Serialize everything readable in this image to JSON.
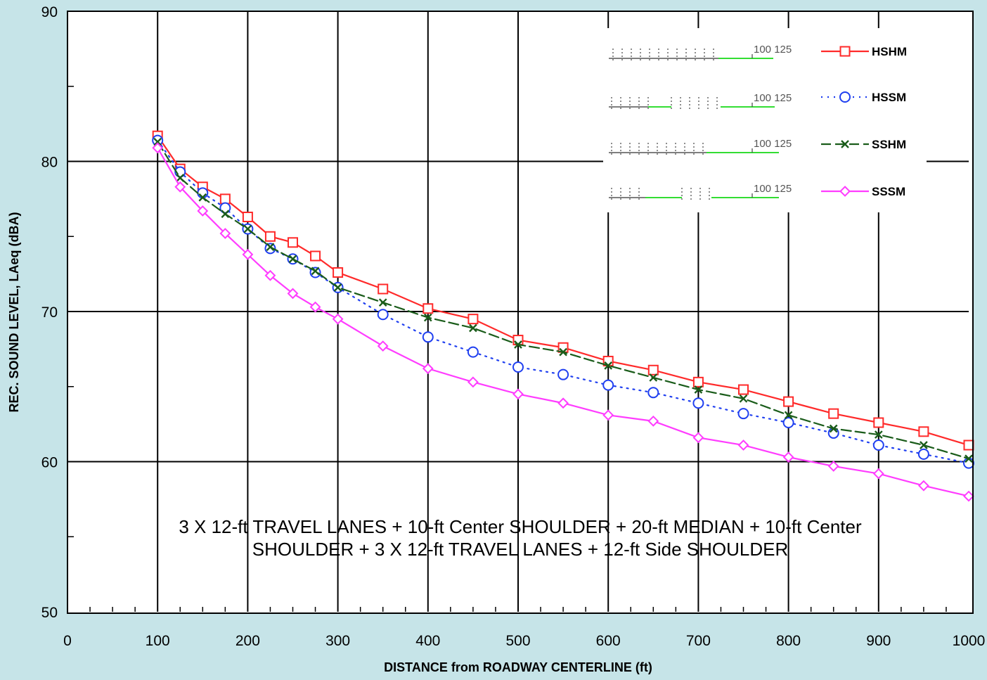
{
  "chart_data": {
    "type": "line",
    "title": "",
    "xlabel": "DISTANCE from ROADWAY CENTERLINE (ft)",
    "ylabel": "REC. SOUND LEVEL, LAeq (dBA)",
    "xlim": [
      0,
      1000
    ],
    "ylim": [
      50,
      90
    ],
    "x_ticks": [
      "0",
      "100",
      "200",
      "300",
      "400",
      "500",
      "600",
      "700",
      "800",
      "900",
      "1000"
    ],
    "y_ticks": [
      "50",
      "60",
      "70",
      "80",
      "90"
    ],
    "grid": true,
    "legend_position": "top-right",
    "x": [
      100,
      125,
      150,
      175,
      200,
      225,
      250,
      275,
      300,
      350,
      400,
      450,
      500,
      550,
      600,
      650,
      700,
      750,
      800,
      850,
      900,
      950,
      1000
    ],
    "series": [
      {
        "name": "HSHM",
        "color": "#ff2a2a",
        "line": "solid",
        "marker": "square",
        "values": [
          81.7,
          79.5,
          78.3,
          77.5,
          76.3,
          75.0,
          74.6,
          73.7,
          72.6,
          71.5,
          70.2,
          69.5,
          68.1,
          67.6,
          66.7,
          66.1,
          65.3,
          64.8,
          64.0,
          63.2,
          62.6,
          62.0,
          61.1
        ]
      },
      {
        "name": "HSSM",
        "color": "#1f3ff0",
        "line": "dotted",
        "marker": "circle",
        "values": [
          81.4,
          79.3,
          77.9,
          76.9,
          75.5,
          74.2,
          73.5,
          72.6,
          71.6,
          69.8,
          68.3,
          67.3,
          66.3,
          65.8,
          65.1,
          64.6,
          63.9,
          63.2,
          62.6,
          61.9,
          61.1,
          60.5,
          59.9
        ]
      },
      {
        "name": "SSHM",
        "color": "#1a5c1a",
        "line": "dashed",
        "marker": "x",
        "values": [
          81.3,
          78.9,
          77.6,
          76.5,
          75.5,
          74.3,
          73.5,
          72.7,
          71.6,
          70.6,
          69.6,
          68.9,
          67.8,
          67.3,
          66.4,
          65.6,
          64.8,
          64.2,
          63.1,
          62.2,
          61.8,
          61.1,
          60.2
        ]
      },
      {
        "name": "SSSM",
        "color": "#ff3cff",
        "line": "solid",
        "marker": "diamond",
        "values": [
          80.9,
          78.3,
          76.7,
          75.2,
          73.8,
          72.4,
          71.2,
          70.3,
          69.5,
          67.7,
          66.2,
          65.3,
          64.5,
          63.9,
          63.1,
          62.7,
          61.6,
          61.1,
          60.3,
          59.7,
          59.2,
          58.4,
          57.7
        ]
      }
    ],
    "inset_labels": [
      "100 125",
      "100 125",
      "100 125",
      "100 125"
    ],
    "annotation": "3 X 12-ft TRAVEL LANES + 10-ft Center SHOULDER + 20-ft MEDIAN + 10-ft Center SHOULDER + 3 X 12-ft TRAVEL LANES + 12-ft Side SHOULDER"
  }
}
